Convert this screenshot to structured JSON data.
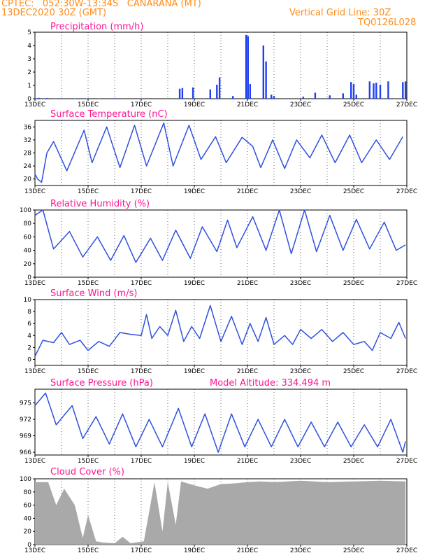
{
  "header": {
    "line1": "CPTEC:   052:30W-13:34S   CANARANA (MT)",
    "line2": "13DEC2020 30Z (GMT)",
    "grid_note": "Vertical Grid Line: 30Z",
    "model_code": "TQ0126L028"
  },
  "colors": {
    "header": "#ff8c1a",
    "title": "#ff1493",
    "line": "#3050e0",
    "bar": "#1f3ff0",
    "cloud": "#a9a9a9"
  },
  "x_ticks": [
    "13DEC",
    "15DEC",
    "17DEC",
    "19DEC",
    "21DEC",
    "23DEC",
    "25DEC",
    "27DEC"
  ],
  "chart_data": [
    {
      "type": "bar",
      "title": "Precipitation  (mm/h)",
      "ylim": [
        0,
        5
      ],
      "yticks": [
        "0",
        "1",
        "2",
        "3",
        "4",
        "5"
      ],
      "series": [
        {
          "values": [
            [
              0.02,
              0.03
            ],
            [
              0.15,
              0.06
            ],
            [
              0.45,
              0.05
            ],
            [
              0.78,
              0.02
            ],
            [
              1.0,
              0.04
            ],
            [
              1.5,
              0.02
            ],
            [
              1.95,
              0.03
            ],
            [
              2.4,
              0.02
            ],
            [
              3.0,
              0.04
            ],
            [
              4.0,
              0.03
            ],
            [
              5.45,
              0.75
            ],
            [
              5.55,
              0.8
            ],
            [
              5.95,
              0.85
            ],
            [
              6.6,
              0.7
            ],
            [
              6.85,
              1.05
            ],
            [
              6.95,
              1.6
            ],
            [
              7.45,
              0.2
            ],
            [
              7.95,
              4.8
            ],
            [
              8.02,
              4.7
            ],
            [
              8.1,
              1.1
            ],
            [
              8.6,
              4.0
            ],
            [
              8.7,
              2.8
            ],
            [
              8.9,
              0.3
            ],
            [
              9.0,
              0.2
            ],
            [
              10.1,
              0.15
            ],
            [
              10.55,
              0.45
            ],
            [
              11.1,
              0.25
            ],
            [
              11.6,
              0.4
            ],
            [
              11.9,
              1.25
            ],
            [
              12.0,
              1.1
            ],
            [
              12.1,
              0.3
            ],
            [
              12.6,
              1.3
            ],
            [
              12.75,
              1.15
            ],
            [
              12.85,
              1.2
            ],
            [
              13.0,
              1.05
            ],
            [
              13.3,
              1.3
            ],
            [
              13.85,
              1.25
            ],
            [
              13.95,
              1.3
            ]
          ]
        }
      ]
    },
    {
      "type": "line",
      "title": "Surface Temperature (nC)",
      "ylim": [
        18,
        38
      ],
      "yticks": [
        "20",
        "24",
        "28",
        "32",
        "36"
      ],
      "series": [
        {
          "values": [
            [
              0,
              21.5
            ],
            [
              0.1,
              20
            ],
            [
              0.25,
              19
            ],
            [
              0.45,
              28
            ],
            [
              0.7,
              31.5
            ],
            [
              1.2,
              22.5
            ],
            [
              1.85,
              35
            ],
            [
              2.15,
              25
            ],
            [
              2.7,
              36
            ],
            [
              3.2,
              23.5
            ],
            [
              3.75,
              36.5
            ],
            [
              4.2,
              24
            ],
            [
              4.85,
              37.2
            ],
            [
              5.2,
              24
            ],
            [
              5.8,
              36.5
            ],
            [
              6.25,
              26
            ],
            [
              6.8,
              33
            ],
            [
              7.2,
              25
            ],
            [
              7.8,
              32.8
            ],
            [
              8.2,
              30
            ],
            [
              8.5,
              23.5
            ],
            [
              8.95,
              32
            ],
            [
              9.4,
              23.2
            ],
            [
              9.85,
              32
            ],
            [
              10.35,
              26.5
            ],
            [
              10.8,
              33.5
            ],
            [
              11.3,
              25
            ],
            [
              11.85,
              33.5
            ],
            [
              12.3,
              25
            ],
            [
              12.85,
              32
            ],
            [
              13.35,
              26
            ],
            [
              13.85,
              33
            ]
          ]
        }
      ]
    },
    {
      "type": "line",
      "title": "Relative Humidity (%)",
      "ylim": [
        0,
        100
      ],
      "yticks": [
        "0",
        "20",
        "40",
        "60",
        "80",
        "100"
      ],
      "series": [
        {
          "values": [
            [
              0,
              92
            ],
            [
              0.3,
              100
            ],
            [
              0.7,
              42
            ],
            [
              1.3,
              68
            ],
            [
              1.8,
              30
            ],
            [
              2.35,
              60
            ],
            [
              2.85,
              25
            ],
            [
              3.35,
              62
            ],
            [
              3.8,
              22
            ],
            [
              4.35,
              58
            ],
            [
              4.8,
              25
            ],
            [
              5.3,
              70
            ],
            [
              5.85,
              28
            ],
            [
              6.3,
              75
            ],
            [
              6.85,
              38
            ],
            [
              7.25,
              85
            ],
            [
              7.6,
              44
            ],
            [
              8.2,
              90
            ],
            [
              8.7,
              40
            ],
            [
              9.2,
              100
            ],
            [
              9.65,
              35
            ],
            [
              10.15,
              100
            ],
            [
              10.6,
              38
            ],
            [
              11.1,
              92
            ],
            [
              11.6,
              40
            ],
            [
              12.1,
              86
            ],
            [
              12.6,
              42
            ],
            [
              13.15,
              82
            ],
            [
              13.6,
              40
            ],
            [
              13.95,
              48
            ]
          ]
        }
      ]
    },
    {
      "type": "line",
      "title": "Surface Wind (m/s)",
      "ylim": [
        -1,
        10
      ],
      "yticks": [
        "0",
        "2",
        "4",
        "6",
        "8",
        "10"
      ],
      "series": [
        {
          "values": [
            [
              0,
              0.5
            ],
            [
              0.3,
              3.2
            ],
            [
              0.7,
              2.8
            ],
            [
              1.0,
              4.5
            ],
            [
              1.3,
              2.5
            ],
            [
              1.7,
              3.2
            ],
            [
              2.0,
              1.5
            ],
            [
              2.4,
              3.0
            ],
            [
              2.8,
              2.2
            ],
            [
              3.2,
              4.5
            ],
            [
              3.6,
              4.2
            ],
            [
              4.0,
              4.0
            ],
            [
              4.2,
              7.5
            ],
            [
              4.4,
              3.5
            ],
            [
              4.7,
              5.5
            ],
            [
              5.0,
              4.0
            ],
            [
              5.3,
              8.2
            ],
            [
              5.6,
              3.0
            ],
            [
              5.9,
              5.5
            ],
            [
              6.2,
              3.5
            ],
            [
              6.6,
              9.0
            ],
            [
              7.0,
              3.0
            ],
            [
              7.4,
              7.2
            ],
            [
              7.8,
              2.5
            ],
            [
              8.1,
              6.0
            ],
            [
              8.4,
              3.0
            ],
            [
              8.7,
              7.0
            ],
            [
              9.0,
              2.5
            ],
            [
              9.4,
              4.0
            ],
            [
              9.7,
              2.5
            ],
            [
              10.0,
              5.0
            ],
            [
              10.4,
              3.5
            ],
            [
              10.8,
              5.0
            ],
            [
              11.2,
              3.0
            ],
            [
              11.6,
              4.5
            ],
            [
              12.0,
              2.5
            ],
            [
              12.4,
              3.0
            ],
            [
              12.7,
              1.5
            ],
            [
              13.0,
              4.5
            ],
            [
              13.4,
              3.5
            ],
            [
              13.7,
              6.2
            ],
            [
              13.95,
              3.5
            ]
          ]
        }
      ]
    },
    {
      "type": "line",
      "title": "Surface Pressure (hPa)",
      "annotation": "Model Altitude: 334.494 m",
      "ylim": [
        965.5,
        977.5
      ],
      "yticks": [
        "966",
        "969",
        "972",
        "975"
      ],
      "series": [
        {
          "values": [
            [
              0,
              974.5
            ],
            [
              0.4,
              976.8
            ],
            [
              0.8,
              971
            ],
            [
              1.4,
              974.5
            ],
            [
              1.8,
              968.5
            ],
            [
              2.3,
              972.5
            ],
            [
              2.8,
              967.5
            ],
            [
              3.3,
              973
            ],
            [
              3.8,
              967
            ],
            [
              4.3,
              972
            ],
            [
              4.8,
              967
            ],
            [
              5.4,
              974
            ],
            [
              5.9,
              967
            ],
            [
              6.4,
              973
            ],
            [
              6.9,
              966
            ],
            [
              7.4,
              973
            ],
            [
              7.9,
              967
            ],
            [
              8.4,
              972
            ],
            [
              8.9,
              967
            ],
            [
              9.4,
              972
            ],
            [
              9.9,
              967
            ],
            [
              10.4,
              971.5
            ],
            [
              10.9,
              967
            ],
            [
              11.4,
              971.5
            ],
            [
              11.9,
              967
            ],
            [
              12.4,
              971
            ],
            [
              12.9,
              967
            ],
            [
              13.4,
              972
            ],
            [
              13.85,
              966
            ],
            [
              13.95,
              968
            ]
          ]
        }
      ]
    },
    {
      "type": "area",
      "title": "Cloud Cover (%)",
      "ylim": [
        0,
        100
      ],
      "yticks": [
        "0",
        "20",
        "40",
        "60",
        "80",
        "100"
      ],
      "series": [
        {
          "values": [
            [
              0,
              95
            ],
            [
              0.5,
              95
            ],
            [
              0.8,
              60
            ],
            [
              1.1,
              85
            ],
            [
              1.5,
              60
            ],
            [
              1.8,
              10
            ],
            [
              2.0,
              45
            ],
            [
              2.3,
              5
            ],
            [
              2.6,
              3
            ],
            [
              3.0,
              2
            ],
            [
              3.3,
              12
            ],
            [
              3.6,
              2
            ],
            [
              4.1,
              5
            ],
            [
              4.5,
              95
            ],
            [
              4.8,
              20
            ],
            [
              5.0,
              95
            ],
            [
              5.3,
              30
            ],
            [
              5.5,
              96
            ],
            [
              6.0,
              90
            ],
            [
              6.5,
              85
            ],
            [
              7.0,
              92
            ],
            [
              7.5,
              93
            ],
            [
              8.0,
              95
            ],
            [
              8.5,
              96
            ],
            [
              9.0,
              95
            ],
            [
              10.0,
              97
            ],
            [
              11.0,
              95
            ],
            [
              12.0,
              96
            ],
            [
              13.0,
              97
            ],
            [
              13.95,
              96
            ]
          ]
        }
      ]
    }
  ]
}
